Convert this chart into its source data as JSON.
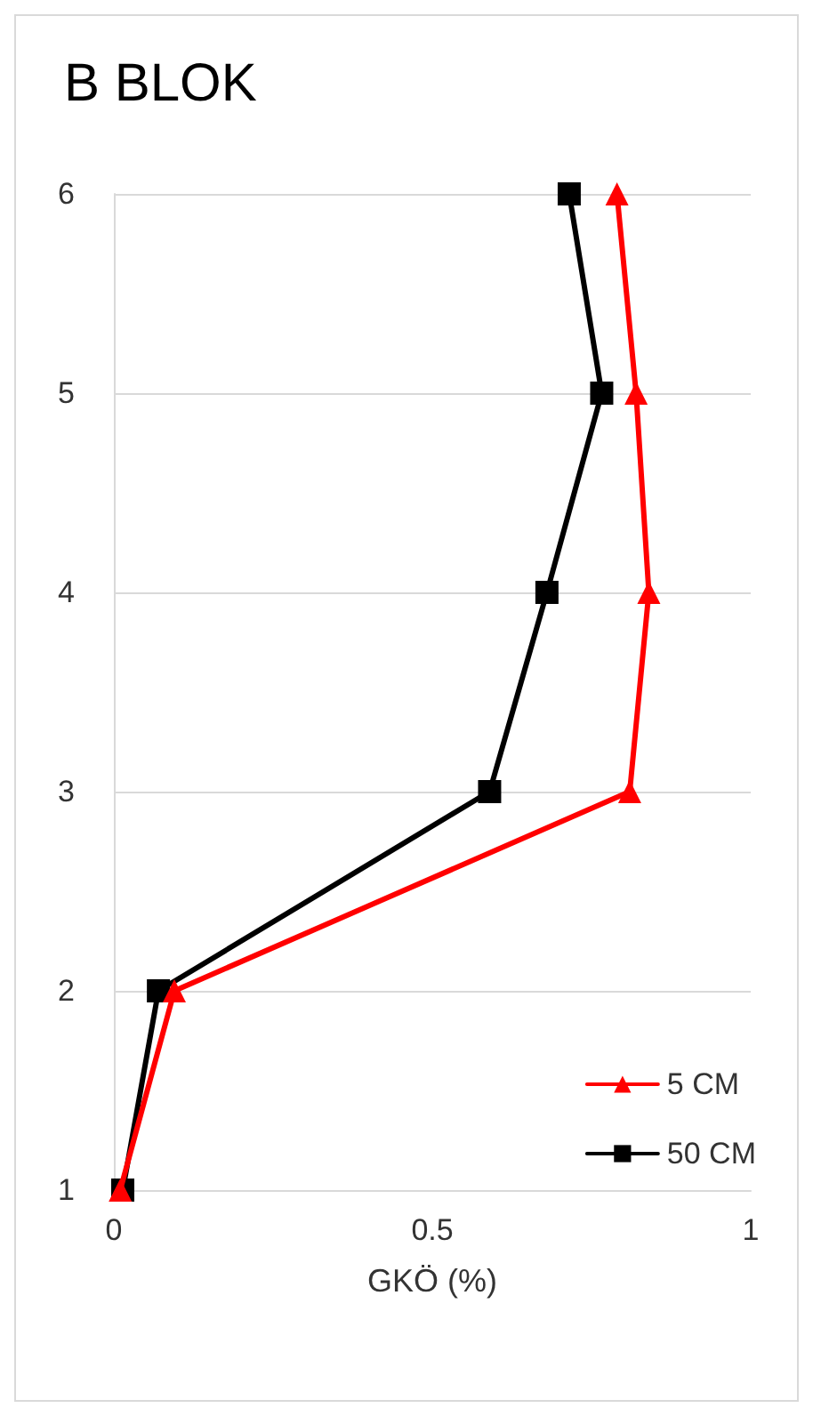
{
  "chart_data": {
    "type": "line",
    "title": "B BLOK",
    "xlabel": "GKÖ (%)",
    "xlim": [
      0,
      1
    ],
    "xticks": [
      0,
      0.5,
      1
    ],
    "ylim": [
      1,
      6
    ],
    "yticks": [
      1,
      2,
      3,
      4,
      5,
      6
    ],
    "grid": "y",
    "legend": "bottom right",
    "line_style": "solid",
    "series": [
      {
        "name": "5 CM",
        "color": "#ff0000",
        "marker": "triangle",
        "x": [
          0.01,
          0.095,
          0.81,
          0.84,
          0.82,
          0.79
        ],
        "values": [
          1,
          2,
          3,
          4,
          5,
          6
        ]
      },
      {
        "name": "50 CM",
        "color": "#000000",
        "marker": "square",
        "x": [
          0.014,
          0.07,
          0.59,
          0.68,
          0.766,
          0.715
        ],
        "values": [
          1,
          2,
          3,
          4,
          5,
          6
        ]
      }
    ]
  }
}
